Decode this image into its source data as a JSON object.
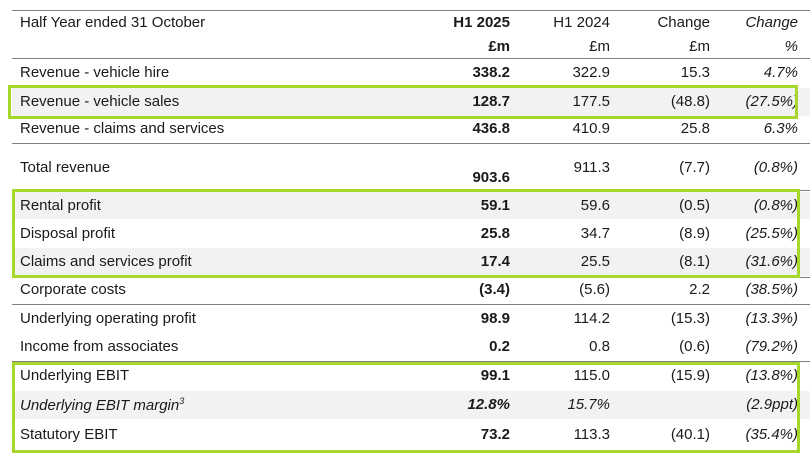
{
  "header": {
    "row1": [
      "Half Year ended 31 October",
      "H1 2025",
      "H1 2024",
      "Change",
      "Change"
    ],
    "row2": [
      "",
      "£m",
      "£m",
      "£m",
      "%"
    ]
  },
  "rows": [
    {
      "label": "Revenue - vehicle hire",
      "h1_2025": "338.2",
      "h1_2024": "322.9",
      "change": "15.3",
      "change_pct": "4.7%"
    },
    {
      "label": "Revenue - vehicle sales",
      "h1_2025": "128.7",
      "h1_2024": "177.5",
      "change": "(48.8)",
      "change_pct": "(27.5%)"
    },
    {
      "label": "Revenue - claims and services",
      "h1_2025": "436.8",
      "h1_2024": "410.9",
      "change": "25.8",
      "change_pct": "6.3%"
    },
    {
      "label": "Total revenue",
      "h1_2025": "903.6",
      "h1_2024": "911.3",
      "change": "(7.7)",
      "change_pct": "(0.8%)"
    },
    {
      "label": "Rental profit",
      "h1_2025": "59.1",
      "h1_2024": "59.6",
      "change": "(0.5)",
      "change_pct": "(0.8%)"
    },
    {
      "label": "Disposal profit",
      "h1_2025": "25.8",
      "h1_2024": "34.7",
      "change": "(8.9)",
      "change_pct": "(25.5%)"
    },
    {
      "label": "Claims and services profit",
      "h1_2025": "17.4",
      "h1_2024": "25.5",
      "change": "(8.1)",
      "change_pct": "(31.6%)"
    },
    {
      "label": "Corporate costs",
      "h1_2025": "(3.4)",
      "h1_2024": "(5.6)",
      "change": "2.2",
      "change_pct": "(38.5%)"
    },
    {
      "label": "Underlying operating profit",
      "h1_2025": "98.9",
      "h1_2024": "114.2",
      "change": "(15.3)",
      "change_pct": "(13.3%)"
    },
    {
      "label": "Income from associates",
      "h1_2025": "0.2",
      "h1_2024": "0.8",
      "change": "(0.6)",
      "change_pct": "(79.2%)"
    },
    {
      "label": "Underlying EBIT",
      "h1_2025": "99.1",
      "h1_2024": "115.0",
      "change": "(15.9)",
      "change_pct": "(13.8%)"
    },
    {
      "label": "Underlying EBIT margin",
      "label_sup": "3",
      "h1_2025": "12.8%",
      "h1_2024": "15.7%",
      "change": "",
      "change_pct": "(2.9ppt)"
    },
    {
      "label": "Statutory EBIT",
      "h1_2025": "73.2",
      "h1_2024": "113.3",
      "change": "(40.1)",
      "change_pct": "(35.4%)"
    }
  ],
  "colors": {
    "highlight": "#a6d82a",
    "stripe": "#f2f2f2",
    "rule": "#7f7f7f"
  }
}
